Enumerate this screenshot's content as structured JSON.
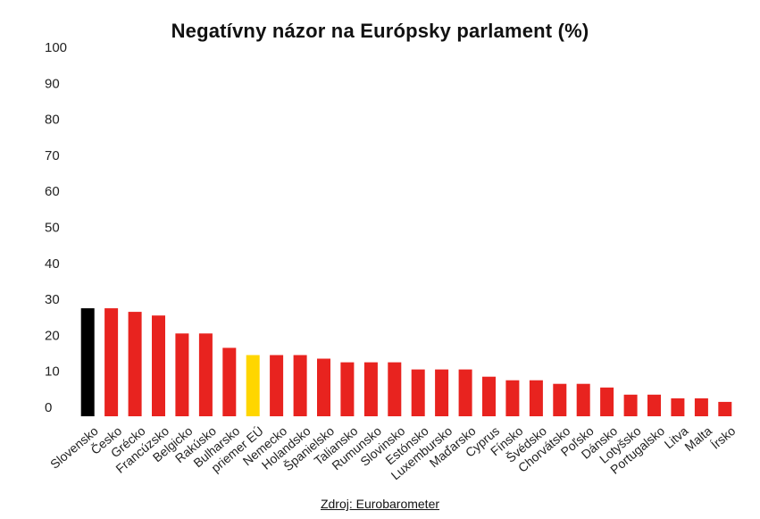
{
  "chart_data": {
    "type": "bar",
    "title": "Negatívny názor na Európsky parlament (%)",
    "xlabel": "",
    "ylabel": "",
    "ylim": [
      0,
      100
    ],
    "yticks": [
      "0",
      "10",
      "20",
      "30",
      "40",
      "50",
      "60",
      "70",
      "80",
      "90",
      "100"
    ],
    "categories": [
      "Slovensko",
      "Česko",
      "Grécko",
      "Francúzsko",
      "Belgicko",
      "Rakúsko",
      "Bulharsko",
      "priemer EÚ",
      "Nemecko",
      "Holandsko",
      "Španielsko",
      "Taliansko",
      "Rumunsko",
      "Slovinsko",
      "Estónsko",
      "Luxembursko",
      "Maďarsko",
      "Cyprus",
      "Fínsko",
      "Švédsko",
      "Chorvátsko",
      "Poľsko",
      "Dánsko",
      "Lotyšsko",
      "Portugalsko",
      "Litva",
      "Malta",
      "Írsko"
    ],
    "values": [
      30,
      30,
      29,
      28,
      23,
      23,
      19,
      17,
      17,
      17,
      16,
      15,
      15,
      15,
      13,
      13,
      13,
      11,
      10,
      10,
      9,
      9,
      8,
      6,
      6,
      5,
      5,
      4
    ],
    "colors": {
      "default": "#e8231f",
      "Slovensko": "#000000",
      "priemer EÚ": "#ffd600"
    },
    "grid": false,
    "legend": "none"
  },
  "source": "Zdroj: Eurobarometer"
}
